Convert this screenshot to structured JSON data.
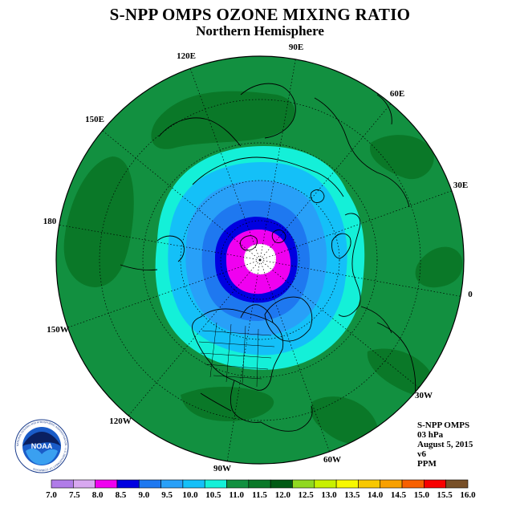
{
  "header": {
    "title": "S-NPP OMPS OZONE MIXING RATIO",
    "subtitle": "Northern Hemisphere"
  },
  "map": {
    "projection": "north-polar-stereographic",
    "longitude_labels": [
      "90E",
      "60E",
      "30E",
      "0",
      "30W",
      "60W",
      "90W",
      "120W",
      "150W",
      "180",
      "150E",
      "120E"
    ]
  },
  "info_block": {
    "lines": [
      "S-NPP OMPS",
      "03 hPa",
      "August 5, 2015",
      "v6",
      "PPM"
    ]
  },
  "colorbar": {
    "ticks": [
      "7.0",
      "7.5",
      "8.0",
      "8.5",
      "9.0",
      "9.5",
      "10.0",
      "10.5",
      "11.0",
      "11.5",
      "12.0",
      "12.5",
      "13.0",
      "13.5",
      "14.0",
      "14.5",
      "15.0",
      "15.5",
      "16.0"
    ],
    "colors": [
      "#b07ce8",
      "#d8a8f0",
      "#f000f0",
      "#0000e0",
      "#1e78f0",
      "#28a0f8",
      "#14c0f8",
      "#14f0d8",
      "#129040",
      "#0a7828",
      "#005a14",
      "#90d820",
      "#c8f000",
      "#f8f800",
      "#f8c800",
      "#f8a000",
      "#f86000",
      "#f80000",
      "#785028"
    ]
  },
  "logo": {
    "name": "NOAA",
    "ring_text": "NATIONAL OCEANIC AND ATMOSPHERIC ADMINISTRATION · U.S. DEPARTMENT OF COMMERCE"
  }
}
